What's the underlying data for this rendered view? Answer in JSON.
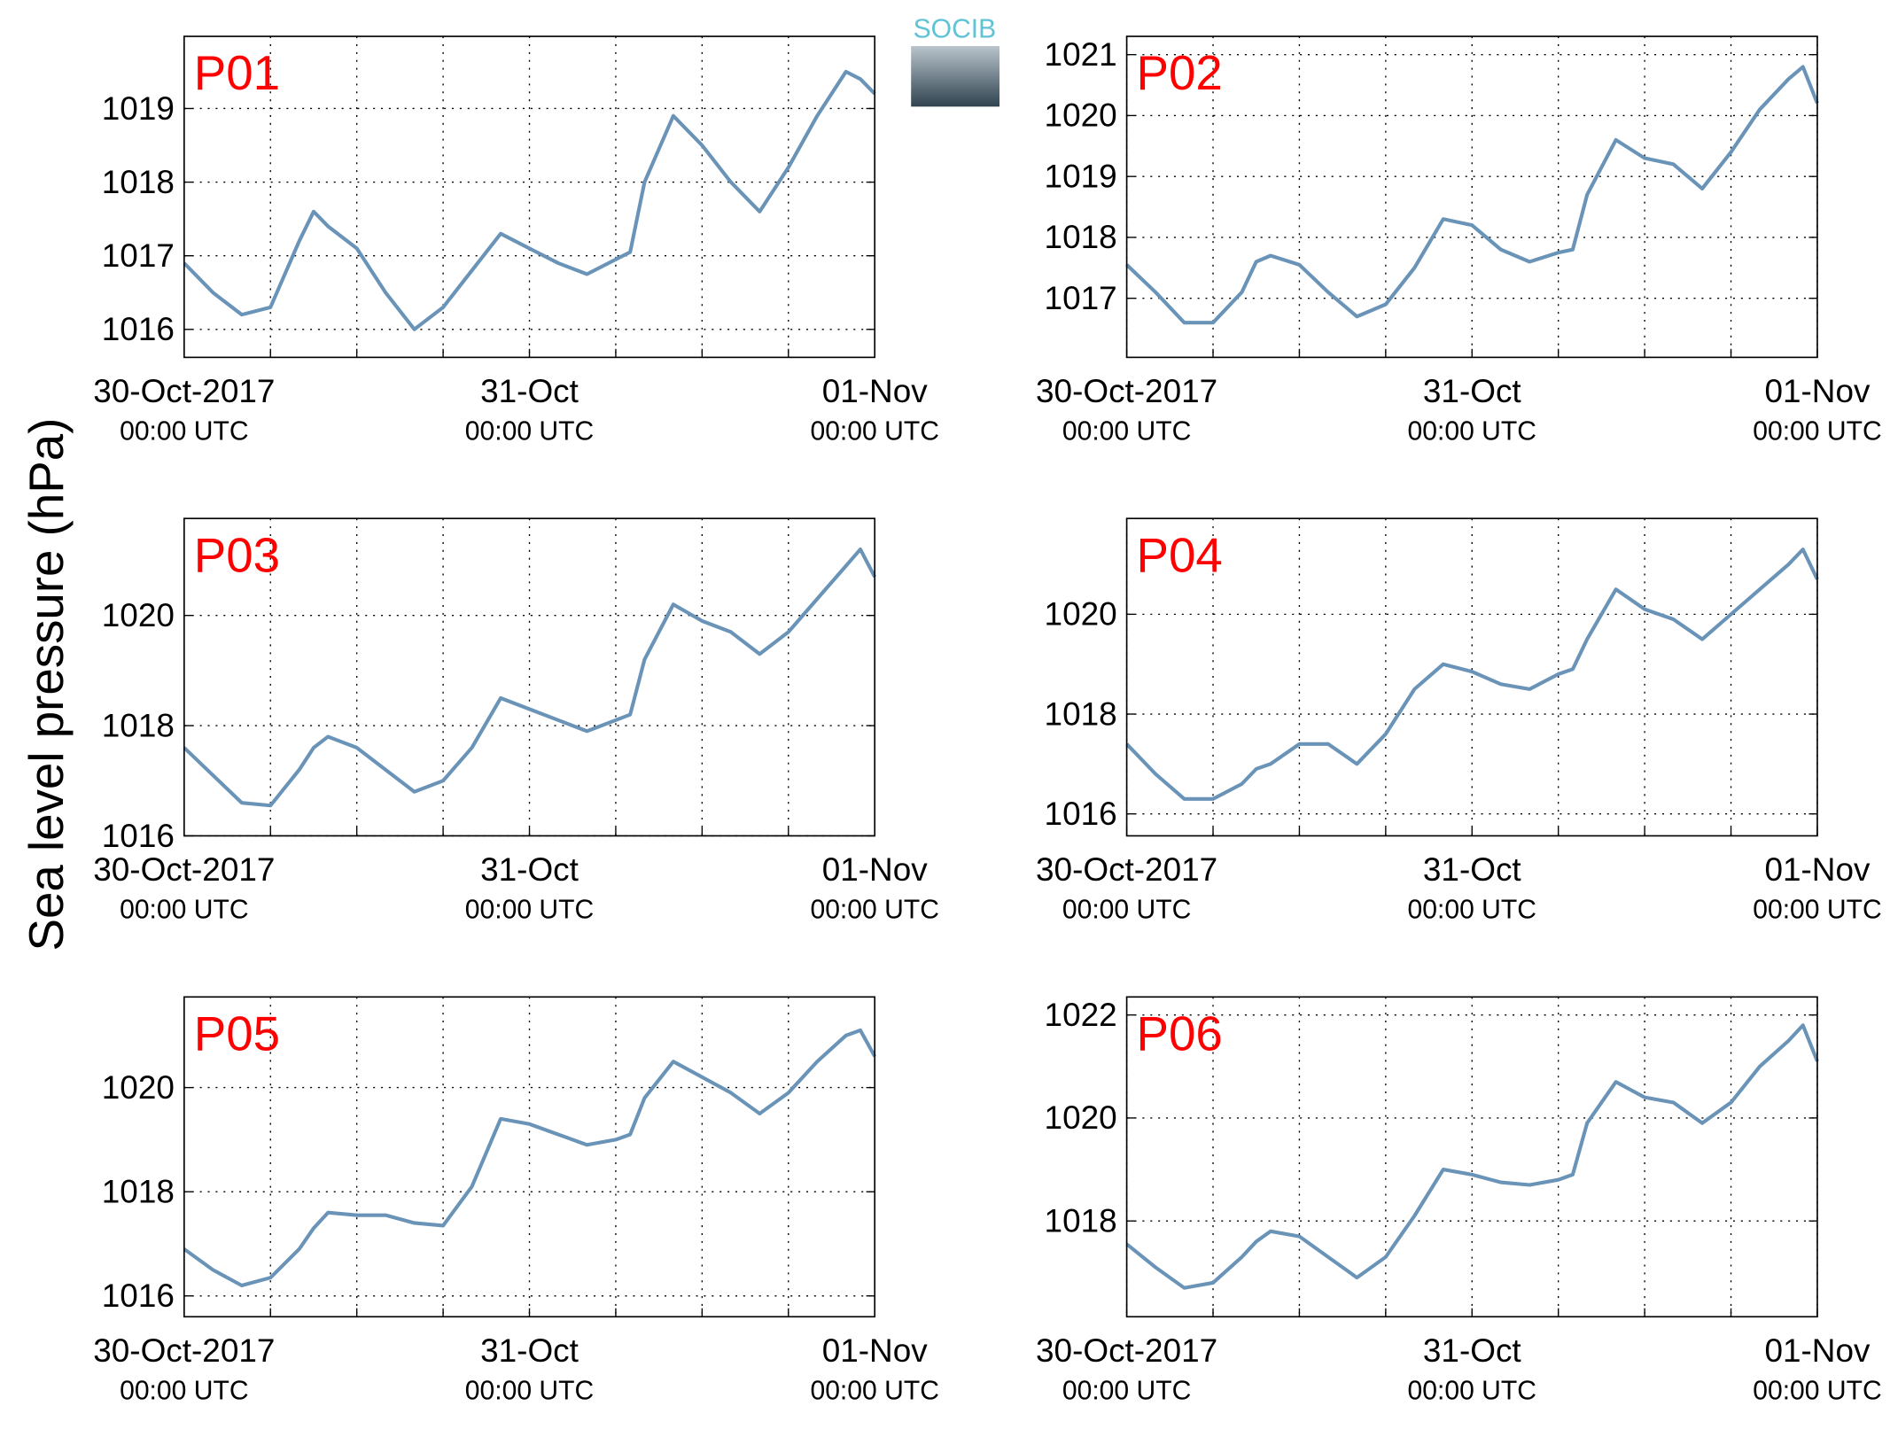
{
  "ylabel": "Sea level pressure (hPa)",
  "logo": "SOCIB",
  "chart_data": [
    {
      "type": "line",
      "title": "P01",
      "x": [
        0,
        2,
        4,
        6,
        8,
        9,
        10,
        12,
        14,
        16,
        18,
        20,
        22,
        24,
        26,
        28,
        30,
        31,
        32,
        34,
        36,
        38,
        40,
        42,
        44,
        46,
        47,
        48
      ],
      "xlim": [
        0,
        48
      ],
      "xticks": [
        {
          "value": 0,
          "label": "30-Oct-2017",
          "sublabel": "00:00 UTC"
        },
        {
          "value": 24,
          "label": "31-Oct",
          "sublabel": "00:00 UTC"
        },
        {
          "value": 48,
          "label": "01-Nov",
          "sublabel": "00:00 UTC"
        }
      ],
      "xgrid": [
        6,
        12,
        18,
        30,
        36,
        42
      ],
      "ylim": [
        1015.62,
        1019.98
      ],
      "yticks": [
        1016,
        1017,
        1018,
        1019
      ],
      "grid": true,
      "series": [
        {
          "color": "#6a93b8",
          "values": [
            1016.9,
            1016.5,
            1016.2,
            1016.3,
            1017.2,
            1017.6,
            1017.4,
            1017.1,
            1016.5,
            1016.0,
            1016.3,
            1016.8,
            1017.3,
            1017.1,
            1016.9,
            1016.75,
            1016.95,
            1017.05,
            1018.0,
            1018.9,
            1018.5,
            1018.0,
            1017.6,
            1018.2,
            1018.9,
            1019.5,
            1019.4,
            1019.2
          ]
        }
      ]
    },
    {
      "type": "line",
      "title": "P02",
      "x": [
        0,
        2,
        4,
        6,
        8,
        9,
        10,
        12,
        14,
        16,
        18,
        20,
        22,
        24,
        26,
        28,
        30,
        31,
        32,
        34,
        36,
        38,
        40,
        42,
        44,
        46,
        47,
        48
      ],
      "xlim": [
        0,
        48
      ],
      "xticks": [
        {
          "value": 0,
          "label": "30-Oct-2017",
          "sublabel": "00:00 UTC"
        },
        {
          "value": 24,
          "label": "31-Oct",
          "sublabel": "00:00 UTC"
        },
        {
          "value": 48,
          "label": "01-Nov",
          "sublabel": "00:00 UTC"
        }
      ],
      "xgrid": [
        6,
        12,
        18,
        30,
        36,
        42
      ],
      "ylim": [
        1016.03,
        1021.3
      ],
      "yticks": [
        1017,
        1018,
        1019,
        1020,
        1021
      ],
      "grid": true,
      "series": [
        {
          "color": "#6a93b8",
          "values": [
            1017.55,
            1017.1,
            1016.6,
            1016.6,
            1017.1,
            1017.6,
            1017.7,
            1017.55,
            1017.1,
            1016.7,
            1016.9,
            1017.5,
            1018.3,
            1018.2,
            1017.8,
            1017.6,
            1017.75,
            1017.8,
            1018.7,
            1019.6,
            1019.3,
            1019.2,
            1018.8,
            1019.4,
            1020.1,
            1020.6,
            1020.8,
            1020.2
          ]
        }
      ]
    },
    {
      "type": "line",
      "title": "P03",
      "x": [
        0,
        2,
        4,
        6,
        8,
        9,
        10,
        12,
        14,
        16,
        18,
        20,
        22,
        24,
        26,
        28,
        30,
        31,
        32,
        34,
        36,
        38,
        40,
        42,
        44,
        46,
        47,
        48
      ],
      "xlim": [
        0,
        48
      ],
      "xticks": [
        {
          "value": 0,
          "label": "30-Oct-2017",
          "sublabel": "00:00 UTC"
        },
        {
          "value": 24,
          "label": "31-Oct",
          "sublabel": "00:00 UTC"
        },
        {
          "value": 48,
          "label": "01-Nov",
          "sublabel": "00:00 UTC"
        }
      ],
      "xgrid": [
        6,
        12,
        18,
        30,
        36,
        42
      ],
      "ylim": [
        1016,
        1021.76
      ],
      "yticks": [
        1016,
        1018,
        1020
      ],
      "grid": true,
      "series": [
        {
          "color": "#6a93b8",
          "values": [
            1017.6,
            1017.1,
            1016.6,
            1016.55,
            1017.2,
            1017.6,
            1017.8,
            1017.6,
            1017.2,
            1016.8,
            1017.0,
            1017.6,
            1018.5,
            1018.3,
            1018.1,
            1017.9,
            1018.1,
            1018.2,
            1019.2,
            1020.2,
            1019.9,
            1019.7,
            1019.3,
            1019.7,
            1020.3,
            1020.9,
            1021.2,
            1020.7
          ]
        }
      ]
    },
    {
      "type": "line",
      "title": "P04",
      "x": [
        0,
        2,
        4,
        6,
        8,
        9,
        10,
        12,
        14,
        16,
        18,
        20,
        22,
        24,
        26,
        28,
        30,
        31,
        32,
        34,
        36,
        38,
        40,
        42,
        44,
        46,
        47,
        48
      ],
      "xlim": [
        0,
        48
      ],
      "xticks": [
        {
          "value": 0,
          "label": "30-Oct-2017",
          "sublabel": "00:00 UTC"
        },
        {
          "value": 24,
          "label": "31-Oct",
          "sublabel": "00:00 UTC"
        },
        {
          "value": 48,
          "label": "01-Nov",
          "sublabel": "00:00 UTC"
        }
      ],
      "xgrid": [
        6,
        12,
        18,
        30,
        36,
        42
      ],
      "ylim": [
        1015.56,
        1021.92
      ],
      "yticks": [
        1016,
        1018,
        1020
      ],
      "grid": true,
      "series": [
        {
          "color": "#6a93b8",
          "values": [
            1017.4,
            1016.8,
            1016.3,
            1016.3,
            1016.6,
            1016.9,
            1017.0,
            1017.4,
            1017.4,
            1017.0,
            1017.6,
            1018.5,
            1019.0,
            1018.85,
            1018.6,
            1018.5,
            1018.8,
            1018.9,
            1019.5,
            1020.5,
            1020.1,
            1019.9,
            1019.5,
            1020.0,
            1020.5,
            1021.0,
            1021.3,
            1020.7
          ]
        }
      ]
    },
    {
      "type": "line",
      "title": "P05",
      "x": [
        0,
        2,
        4,
        6,
        8,
        9,
        10,
        12,
        14,
        16,
        18,
        20,
        22,
        24,
        26,
        28,
        30,
        31,
        32,
        34,
        36,
        38,
        40,
        42,
        44,
        46,
        47,
        48
      ],
      "xlim": [
        0,
        48
      ],
      "xticks": [
        {
          "value": 0,
          "label": "30-Oct-2017",
          "sublabel": "00:00 UTC"
        },
        {
          "value": 24,
          "label": "31-Oct",
          "sublabel": "00:00 UTC"
        },
        {
          "value": 48,
          "label": "01-Nov",
          "sublabel": "00:00 UTC"
        }
      ],
      "xgrid": [
        6,
        12,
        18,
        30,
        36,
        42
      ],
      "ylim": [
        1015.6,
        1021.74
      ],
      "yticks": [
        1016,
        1018,
        1020
      ],
      "grid": true,
      "series": [
        {
          "color": "#6a93b8",
          "values": [
            1016.9,
            1016.5,
            1016.2,
            1016.35,
            1016.9,
            1017.3,
            1017.6,
            1017.55,
            1017.55,
            1017.4,
            1017.35,
            1018.1,
            1019.4,
            1019.3,
            1019.1,
            1018.9,
            1019.0,
            1019.1,
            1019.8,
            1020.5,
            1020.2,
            1019.9,
            1019.5,
            1019.9,
            1020.5,
            1021.0,
            1021.1,
            1020.6
          ]
        }
      ]
    },
    {
      "type": "line",
      "title": "P06",
      "x": [
        0,
        2,
        4,
        6,
        8,
        9,
        10,
        12,
        14,
        16,
        18,
        20,
        22,
        24,
        26,
        28,
        30,
        31,
        32,
        34,
        36,
        38,
        40,
        42,
        44,
        46,
        47,
        48
      ],
      "xlim": [
        0,
        48
      ],
      "xticks": [
        {
          "value": 0,
          "label": "30-Oct-2017",
          "sublabel": "00:00 UTC"
        },
        {
          "value": 24,
          "label": "31-Oct",
          "sublabel": "00:00 UTC"
        },
        {
          "value": 48,
          "label": "01-Nov",
          "sublabel": "00:00 UTC"
        }
      ],
      "xgrid": [
        6,
        12,
        18,
        30,
        36,
        42
      ],
      "ylim": [
        1016.14,
        1022.35
      ],
      "yticks": [
        1018,
        1020,
        1022
      ],
      "grid": true,
      "series": [
        {
          "color": "#6a93b8",
          "values": [
            1017.55,
            1017.1,
            1016.7,
            1016.8,
            1017.3,
            1017.6,
            1017.8,
            1017.7,
            1017.3,
            1016.9,
            1017.3,
            1018.1,
            1019.0,
            1018.9,
            1018.75,
            1018.7,
            1018.8,
            1018.9,
            1019.9,
            1020.7,
            1020.4,
            1020.3,
            1019.9,
            1020.3,
            1021.0,
            1021.5,
            1021.8,
            1021.1
          ]
        }
      ]
    }
  ]
}
